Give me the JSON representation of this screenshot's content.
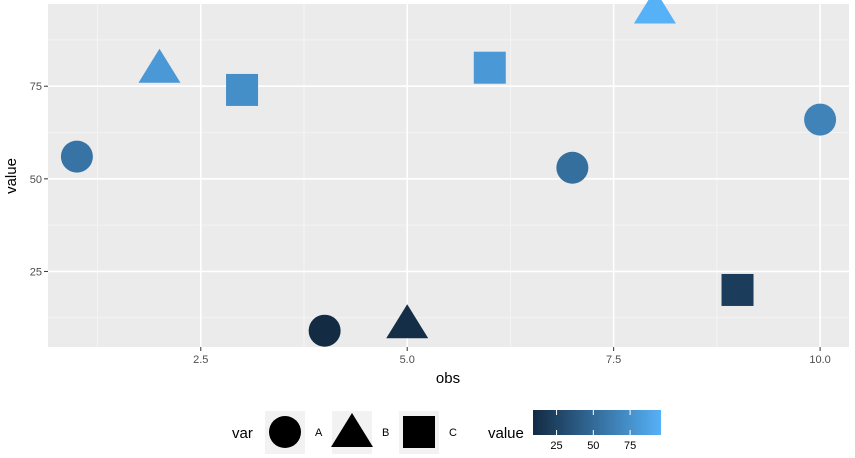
{
  "chart_data": {
    "type": "scatter",
    "xlabel": "obs",
    "ylabel": "value",
    "xlim": [
      0.65,
      10.35
    ],
    "ylim": [
      4.6,
      97.2
    ],
    "x_ticks": [
      2.5,
      5.0,
      7.5,
      10.0
    ],
    "x_tick_labels": [
      "2.5",
      "5.0",
      "7.5",
      "10.0"
    ],
    "y_ticks": [
      25,
      50,
      75
    ],
    "y_tick_labels": [
      "25",
      "50",
      "75"
    ],
    "grid": true,
    "panel_background": "#ebebeb",
    "points": [
      {
        "obs": 1,
        "value": 56,
        "var": "A"
      },
      {
        "obs": 2,
        "value": 80,
        "var": "B"
      },
      {
        "obs": 3,
        "value": 74,
        "var": "C"
      },
      {
        "obs": 4,
        "value": 9,
        "var": "A"
      },
      {
        "obs": 5,
        "value": 11,
        "var": "B"
      },
      {
        "obs": 6,
        "value": 80,
        "var": "C"
      },
      {
        "obs": 7,
        "value": 53,
        "var": "A"
      },
      {
        "obs": 8,
        "value": 96,
        "var": "B"
      },
      {
        "obs": 9,
        "value": 20,
        "var": "C"
      },
      {
        "obs": 10,
        "value": 66,
        "var": "A"
      }
    ],
    "legend_position": "bottom",
    "shape_legend": {
      "title": "var",
      "items": [
        {
          "label": "A",
          "shape": "circle"
        },
        {
          "label": "B",
          "shape": "triangle"
        },
        {
          "label": "C",
          "shape": "square"
        }
      ]
    },
    "color_legend": {
      "title": "value",
      "ticks": [
        25,
        50,
        75
      ],
      "tick_labels": [
        "25",
        "50",
        "75"
      ],
      "low_color": "#132b43",
      "high_color": "#56b1f7",
      "range": [
        9,
        96
      ]
    }
  }
}
